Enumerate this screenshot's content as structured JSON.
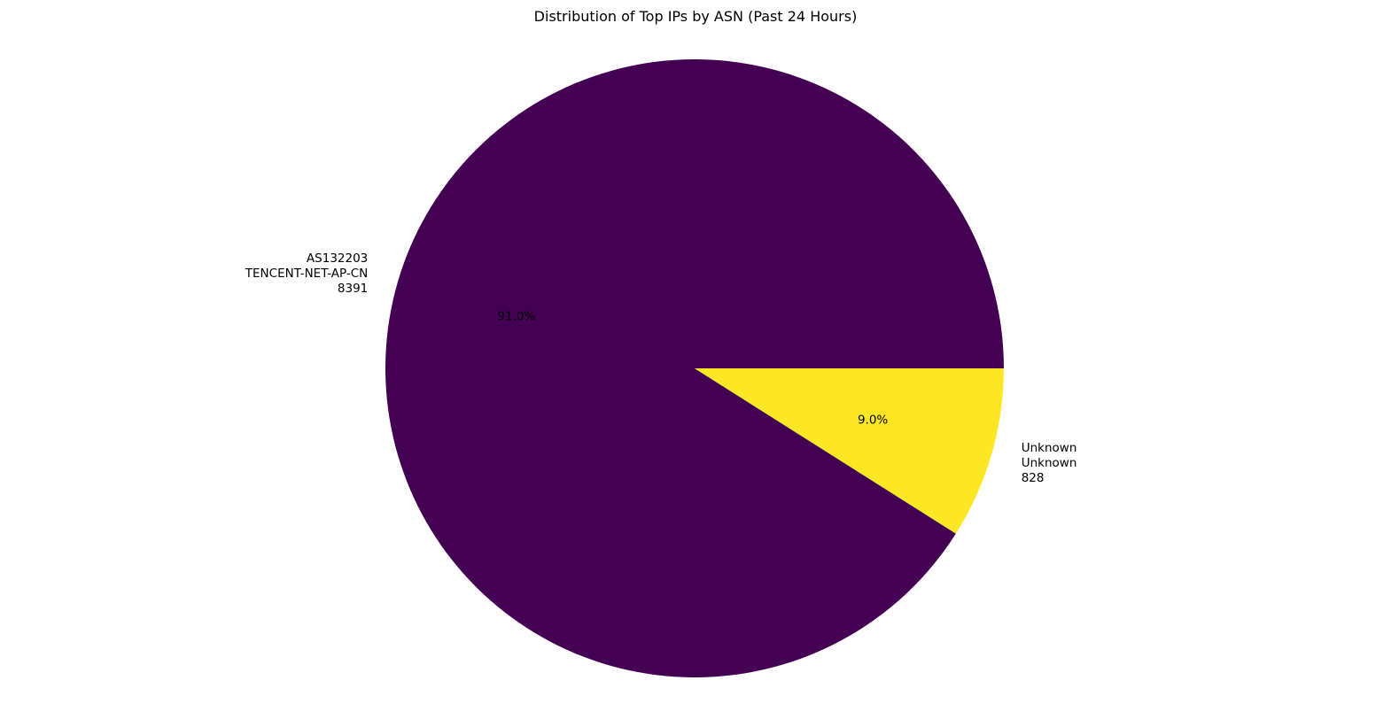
{
  "chart_data": {
    "type": "pie",
    "title": "Distribution of Top IPs by ASN (Past 24 Hours)",
    "slices": [
      {
        "label_lines": [
          "AS132203",
          "TENCENT-NET-AP-CN",
          "8391"
        ],
        "value": 8391,
        "percent_label": "91.0%",
        "color": "#440154"
      },
      {
        "label_lines": [
          "Unknown",
          "Unknown",
          "828"
        ],
        "value": 828,
        "percent_label": "9.0%",
        "color": "#fde725"
      }
    ],
    "start_angle": "3 o'clock",
    "direction": "counterclockwise",
    "legend": "none"
  }
}
